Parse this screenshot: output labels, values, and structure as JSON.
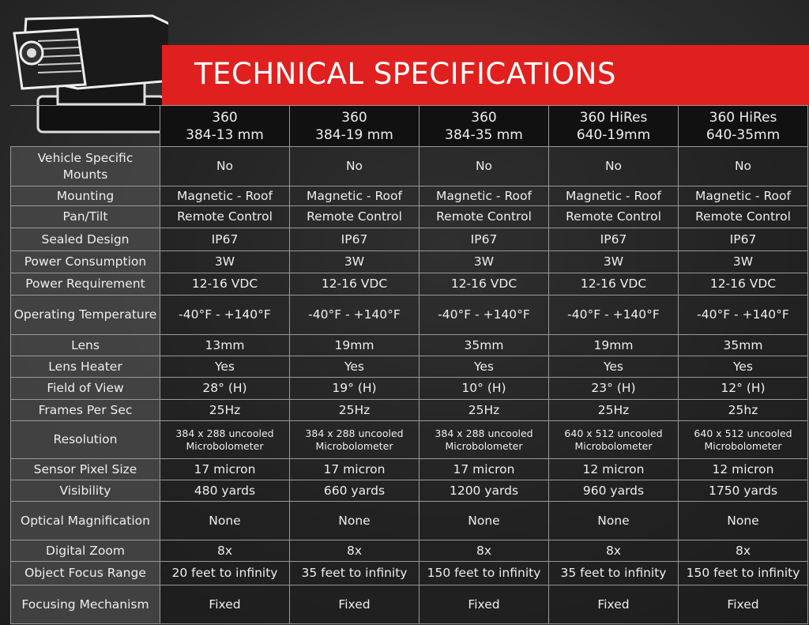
{
  "header": {
    "title": "TECHNICAL SPECIFICATIONS"
  },
  "table": {
    "columns": [
      [
        "360",
        "384-13 mm"
      ],
      [
        "360",
        "384-19 mm"
      ],
      [
        "360",
        "384-35 mm"
      ],
      [
        "360 HiRes",
        "640-19mm"
      ],
      [
        "360 HiRes",
        "640-35mm"
      ]
    ],
    "rows": [
      {
        "label": "Vehicle Specific Mounts",
        "values": [
          "No",
          "No",
          "No",
          "No",
          "No"
        ]
      },
      {
        "label": "Mounting",
        "values": [
          "Magnetic - Roof",
          "Magnetic - Roof",
          "Magnetic - Roof",
          "Magnetic - Roof",
          "Magnetic - Roof"
        ]
      },
      {
        "label": "Pan/Tilt",
        "values": [
          "Remote Control",
          "Remote Control",
          "Remote Control",
          "Remote Control",
          "Remote Control"
        ]
      },
      {
        "label": "Sealed Design",
        "values": [
          "IP67",
          "IP67",
          "IP67",
          "IP67",
          "IP67"
        ]
      },
      {
        "label": "Power Consumption",
        "values": [
          "3W",
          "3W",
          "3W",
          "3W",
          "3W"
        ]
      },
      {
        "label": "Power Requirement",
        "values": [
          "12-16 VDC",
          "12-16 VDC",
          "12-16 VDC",
          "12-16 VDC",
          "12-16 VDC"
        ]
      },
      {
        "label": "Operating Temperature",
        "values": [
          "-40°F - +140°F",
          "-40°F - +140°F",
          "-40°F - +140°F",
          "-40°F - +140°F",
          "-40°F - +140°F"
        ]
      },
      {
        "label": "Lens",
        "values": [
          "13mm",
          "19mm",
          "35mm",
          "19mm",
          "35mm"
        ]
      },
      {
        "label": "Lens Heater",
        "values": [
          "Yes",
          "Yes",
          "Yes",
          "Yes",
          "Yes"
        ]
      },
      {
        "label": "Field of View",
        "values": [
          "28° (H)",
          "19° (H)",
          "10° (H)",
          "23° (H)",
          "12° (H)"
        ]
      },
      {
        "label": "Frames Per Sec",
        "values": [
          "25Hz",
          "25Hz",
          "25Hz",
          "25Hz",
          "25hz"
        ]
      },
      {
        "label": "Resolution",
        "values": [
          "384 x 288 uncooled Microbolometer",
          "384 x 288 uncooled Microbolometer",
          "384 x 288 uncooled Microbolometer",
          "640 x 512 uncooled Microbolometer",
          "640 x 512 uncooled Microbolometer"
        ]
      },
      {
        "label": "Sensor Pixel Size",
        "values": [
          "17 micron",
          "17 micron",
          "17 micron",
          "12 micron",
          "12 micron"
        ]
      },
      {
        "label": "Visibility",
        "values": [
          "480 yards",
          "660 yards",
          "1200 yards",
          "960 yards",
          "1750 yards"
        ]
      },
      {
        "label": "Optical Magnification",
        "values": [
          "None",
          "None",
          "None",
          "None",
          "None"
        ]
      },
      {
        "label": "Digital Zoom",
        "values": [
          "8x",
          "8x",
          "8x",
          "8x",
          "8x"
        ]
      },
      {
        "label": "Object Focus Range",
        "values": [
          "20 feet to infinity",
          "35 feet to infinity",
          "150 feet to infinity",
          "35 feet to infinity",
          "150 feet to infinity"
        ]
      },
      {
        "label": "Focusing Mechanism",
        "values": [
          "Fixed",
          "Fixed",
          "Fixed",
          "Fixed",
          "Fixed"
        ]
      }
    ]
  }
}
